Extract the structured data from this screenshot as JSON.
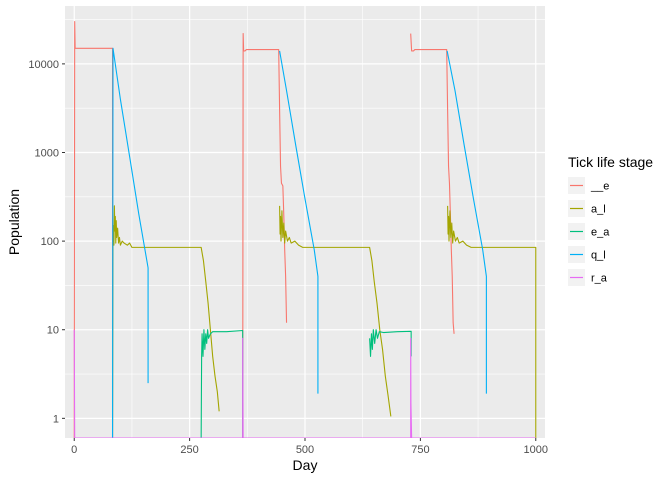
{
  "chart_data": {
    "type": "line",
    "xlabel": "Day",
    "ylabel": "Population",
    "xlim": [
      -20,
      1020
    ],
    "ylim": [
      0.6,
      45000
    ],
    "yscale": "log",
    "grid": true,
    "x_ticks": [
      0,
      250,
      500,
      750,
      1000
    ],
    "x_tick_labels": [
      "0",
      "250",
      "500",
      "750",
      "1000"
    ],
    "y_ticks": [
      1,
      10,
      100,
      1000,
      10000
    ],
    "y_tick_labels": [
      "1",
      "10",
      "100",
      "1000",
      "10000"
    ],
    "legend": {
      "title": "Tick life stage",
      "placement": "right",
      "entries": [
        "__e",
        "a_l",
        "e_a",
        "q_l",
        "r_a"
      ]
    },
    "colors": {
      "__e": "#F8766D",
      "a_l": "#A3A500",
      "e_a": "#00BF7D",
      "q_l": "#00B0F6",
      "r_a": "#E76BF3",
      "panel": "#EBEBEB",
      "grid": "#FFFFFF"
    },
    "series": [
      {
        "name": "__e",
        "segments": [
          [
            [
              0,
              0.6
            ],
            [
              1,
              30000
            ],
            [
              2,
              15000
            ],
            [
              83,
              15000
            ],
            [
              83,
              0.6
            ]
          ],
          [
            [
              365,
              0.6
            ],
            [
              366,
              22000
            ],
            [
              367,
              14000
            ],
            [
              370,
              14000
            ],
            [
              373,
              14500
            ],
            [
              443,
              14500
            ],
            [
              445,
              3000
            ],
            [
              447,
              700
            ],
            [
              449,
              450
            ],
            [
              452,
              420
            ],
            [
              454,
              200
            ],
            [
              456,
              80
            ],
            [
              458,
              40
            ],
            [
              460,
              12
            ]
          ],
          [
            [
              729,
              22000
            ],
            [
              731,
              14000
            ],
            [
              735,
              14000
            ],
            [
              738,
              14500
            ],
            [
              807,
              14500
            ],
            [
              809,
              3000
            ],
            [
              811,
              700
            ],
            [
              813,
              450
            ],
            [
              815,
              200
            ],
            [
              817,
              80
            ],
            [
              819,
              40
            ],
            [
              821,
              12
            ],
            [
              823,
              9
            ]
          ]
        ]
      },
      {
        "name": "a_l",
        "segments": [
          [
            [
              83,
              0.6
            ],
            [
              84,
              100
            ],
            [
              85,
              150
            ],
            [
              86,
              90
            ],
            [
              87,
              250
            ],
            [
              88,
              130
            ],
            [
              89,
              190
            ],
            [
              90,
              95
            ],
            [
              91,
              170
            ],
            [
              92,
              110
            ],
            [
              94,
              140
            ],
            [
              96,
              95
            ],
            [
              98,
              110
            ],
            [
              100,
              90
            ],
            [
              104,
              100
            ],
            [
              108,
              95
            ],
            [
              115,
              90
            ],
            [
              120,
              95
            ],
            [
              125,
              85
            ],
            [
              150,
              85
            ],
            [
              200,
              85
            ],
            [
              275,
              85
            ],
            [
              280,
              60
            ],
            [
              285,
              35
            ],
            [
              290,
              20
            ],
            [
              295,
              10
            ],
            [
              300,
              5
            ],
            [
              305,
              3
            ],
            [
              310,
              2
            ],
            [
              314,
              1.2
            ]
          ],
          [
            [
              445,
              250
            ],
            [
              446,
              120
            ],
            [
              447,
              190
            ],
            [
              448,
              100
            ],
            [
              450,
              220
            ],
            [
              452,
              110
            ],
            [
              454,
              160
            ],
            [
              456,
              95
            ],
            [
              458,
              130
            ],
            [
              462,
              100
            ],
            [
              466,
              110
            ],
            [
              470,
              95
            ],
            [
              478,
              100
            ],
            [
              486,
              90
            ],
            [
              495,
              85
            ],
            [
              540,
              85
            ],
            [
              640,
              85
            ],
            [
              645,
              60
            ],
            [
              650,
              35
            ],
            [
              656,
              20
            ],
            [
              662,
              10
            ],
            [
              668,
              6
            ],
            [
              674,
              3
            ],
            [
              680,
              1.8
            ],
            [
              686,
              1.05
            ]
          ],
          [
            [
              809,
              250
            ],
            [
              810,
              120
            ],
            [
              811,
              190
            ],
            [
              812,
              100
            ],
            [
              814,
              220
            ],
            [
              816,
              110
            ],
            [
              818,
              160
            ],
            [
              820,
              95
            ],
            [
              822,
              130
            ],
            [
              826,
              100
            ],
            [
              830,
              110
            ],
            [
              834,
              95
            ],
            [
              842,
              100
            ],
            [
              850,
              90
            ],
            [
              860,
              85
            ],
            [
              900,
              85
            ],
            [
              1000,
              85
            ],
            [
              1000,
              0.6
            ]
          ]
        ]
      },
      {
        "name": "e_a",
        "segments": [
          [
            [
              275,
              0.6
            ],
            [
              276,
              5
            ],
            [
              277,
              9
            ],
            [
              279,
              5
            ],
            [
              281,
              10
            ],
            [
              283,
              6
            ],
            [
              285,
              9
            ],
            [
              287,
              7
            ],
            [
              289,
              10
            ],
            [
              291,
              8
            ],
            [
              295,
              9
            ],
            [
              300,
              9.5
            ],
            [
              330,
              9.5
            ],
            [
              365,
              9.8
            ],
            [
              365,
              0.6
            ]
          ],
          [
            [
              640,
              8
            ],
            [
              642,
              5
            ],
            [
              644,
              9
            ],
            [
              646,
              6
            ],
            [
              648,
              10
            ],
            [
              651,
              7
            ],
            [
              654,
              10
            ],
            [
              657,
              8
            ],
            [
              661,
              9.5
            ],
            [
              670,
              9.3
            ],
            [
              700,
              9.5
            ],
            [
              730,
              9.6
            ],
            [
              730,
              5
            ]
          ]
        ]
      },
      {
        "name": "q_l",
        "segments": [
          [
            [
              83,
              0.6
            ],
            [
              84,
              15000
            ],
            [
              100,
              4000
            ],
            [
              120,
              900
            ],
            [
              140,
              200
            ],
            [
              160,
              50
            ],
            [
              160,
              2.5
            ]
          ],
          [
            [
              445,
              14000
            ],
            [
              460,
              5000
            ],
            [
              480,
              1200
            ],
            [
              500,
              300
            ],
            [
              520,
              80
            ],
            [
              528,
              40
            ],
            [
              528,
              1.9
            ]
          ],
          [
            [
              808,
              14000
            ],
            [
              825,
              5000
            ],
            [
              845,
              1200
            ],
            [
              865,
              300
            ],
            [
              885,
              80
            ],
            [
              893,
              40
            ],
            [
              893,
              1.9
            ]
          ]
        ]
      },
      {
        "name": "r_a",
        "segments": [
          [
            [
              0,
              10
            ],
            [
              1,
              0.6
            ],
            [
              365,
              0.6
            ],
            [
              365,
              8
            ],
            [
              366,
              0.6
            ],
            [
              729,
              0.6
            ],
            [
              729,
              8
            ],
            [
              729.5,
              1.5
            ],
            [
              730,
              1.1
            ],
            [
              731,
              0.6
            ],
            [
              1000,
              0.6
            ]
          ]
        ]
      }
    ]
  }
}
